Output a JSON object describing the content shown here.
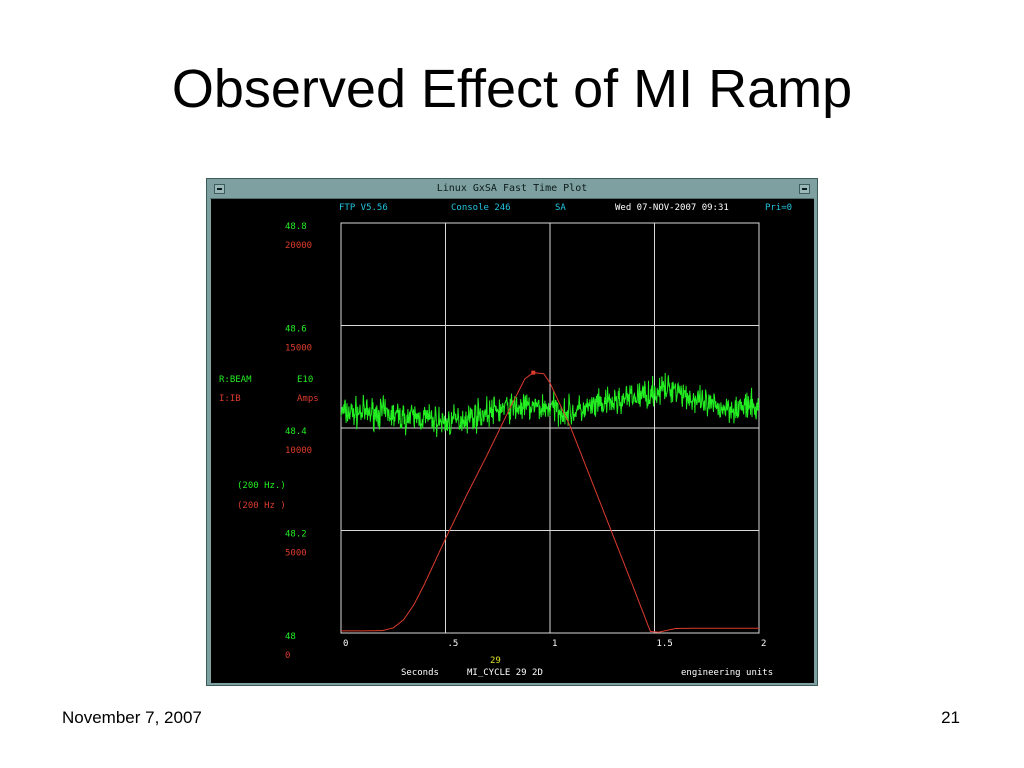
{
  "slide": {
    "title": "Observed Effect of MI Ramp",
    "footer_date": "November 7, 2007",
    "page_number": "21"
  },
  "window": {
    "title": "Linux GxSA  Fast Time Plot"
  },
  "header": {
    "version": "FTP V5.56",
    "console": "Console 246",
    "node": "SA",
    "datetime": "Wed 07-NOV-2007 09:31",
    "priority": "Pri=0"
  },
  "left_scale": {
    "green_ticks": [
      "48.8",
      "48.6",
      "48.4",
      "48.2",
      "48"
    ],
    "red_ticks": [
      "20000",
      "15000",
      "10000",
      "5000",
      "0"
    ]
  },
  "legend": {
    "green_device": "R:BEAM",
    "green_units_label": "E10",
    "red_device": "I:IB",
    "red_units_label": "Amps",
    "green_rate": "(200  Hz.)",
    "red_rate": "(200  Hz )"
  },
  "x_axis": {
    "tick_labels": [
      "0",
      ".5",
      "1",
      "1.5",
      "2"
    ],
    "event_value": "29",
    "units": "Seconds",
    "event": "MI_CYCLE  29 2D",
    "mode": "engineering units"
  },
  "colors": {
    "green_trace": "#22ee22",
    "red_trace": "#dd3b2e",
    "cyan_text": "#22c4e0",
    "yellow_text": "#e0e020",
    "grid": "#d8d8d8"
  },
  "chart_data": {
    "type": "line",
    "xlabel": "Seconds",
    "xlim": [
      0,
      2
    ],
    "grid": true,
    "series": [
      {
        "name": "R:BEAM",
        "units": "E10",
        "ylim": [
          48,
          48.8
        ],
        "x": [
          0,
          0.1,
          0.2,
          0.3,
          0.4,
          0.5,
          0.6,
          0.7,
          0.8,
          0.9,
          1.0,
          1.1,
          1.2,
          1.3,
          1.4,
          1.5,
          1.6,
          1.7,
          1.8,
          1.9,
          2.0
        ],
        "values": [
          48.43,
          48.43,
          48.43,
          48.42,
          48.42,
          48.41,
          48.42,
          48.43,
          48.44,
          48.44,
          48.44,
          48.43,
          48.44,
          48.45,
          48.46,
          48.47,
          48.48,
          48.45,
          48.44,
          48.44,
          48.44
        ]
      },
      {
        "name": "I:IB",
        "units": "Amps",
        "ylim": [
          0,
          20000
        ],
        "x": [
          0,
          0.1,
          0.2,
          0.25,
          0.3,
          0.35,
          0.4,
          0.5,
          0.6,
          0.7,
          0.8,
          0.88,
          0.92,
          0.97,
          1.0,
          1.1,
          1.2,
          1.3,
          1.4,
          1.48,
          1.52,
          1.6,
          1.7,
          1.8,
          1.9,
          2.0
        ],
        "values": [
          100,
          100,
          120,
          250,
          650,
          1400,
          2400,
          4600,
          6700,
          8700,
          10800,
          12400,
          12700,
          12650,
          12200,
          10000,
          7400,
          4800,
          2200,
          80,
          40,
          220,
          230,
          230,
          230,
          230
        ]
      }
    ]
  }
}
